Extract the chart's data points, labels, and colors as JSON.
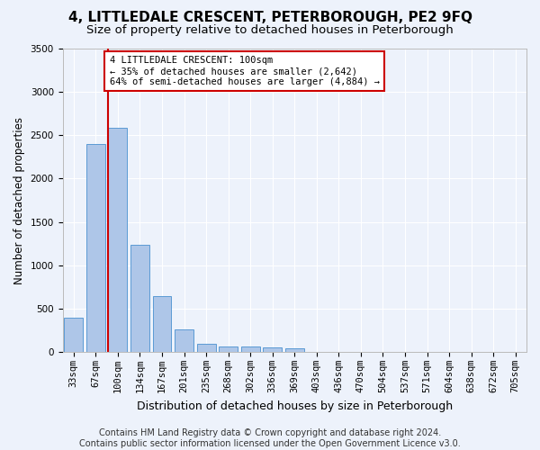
{
  "title": "4, LITTLEDALE CRESCENT, PETERBOROUGH, PE2 9FQ",
  "subtitle": "Size of property relative to detached houses in Peterborough",
  "xlabel": "Distribution of detached houses by size in Peterborough",
  "ylabel": "Number of detached properties",
  "footer_line1": "Contains HM Land Registry data © Crown copyright and database right 2024.",
  "footer_line2": "Contains public sector information licensed under the Open Government Licence v3.0.",
  "categories": [
    "33sqm",
    "67sqm",
    "100sqm",
    "134sqm",
    "167sqm",
    "201sqm",
    "235sqm",
    "268sqm",
    "302sqm",
    "336sqm",
    "369sqm",
    "403sqm",
    "436sqm",
    "470sqm",
    "504sqm",
    "537sqm",
    "571sqm",
    "604sqm",
    "638sqm",
    "672sqm",
    "705sqm"
  ],
  "values": [
    390,
    2400,
    2590,
    1240,
    640,
    255,
    95,
    60,
    58,
    55,
    40,
    0,
    0,
    0,
    0,
    0,
    0,
    0,
    0,
    0,
    0
  ],
  "bar_color": "#aec6e8",
  "bar_edge_color": "#5b9bd5",
  "highlight_bar_index": 2,
  "highlight_line_color": "#cc0000",
  "annotation_text": "4 LITTLEDALE CRESCENT: 100sqm\n← 35% of detached houses are smaller (2,642)\n64% of semi-detached houses are larger (4,884) →",
  "annotation_box_color": "#cc0000",
  "ylim": [
    0,
    3500
  ],
  "yticks": [
    0,
    500,
    1000,
    1500,
    2000,
    2500,
    3000,
    3500
  ],
  "title_fontsize": 11,
  "subtitle_fontsize": 9.5,
  "xlabel_fontsize": 9,
  "ylabel_fontsize": 8.5,
  "tick_fontsize": 7.5,
  "annotation_fontsize": 7.5,
  "footer_fontsize": 7,
  "background_color": "#edf2fb",
  "plot_bg_color": "#edf2fb",
  "grid_color": "#ffffff"
}
